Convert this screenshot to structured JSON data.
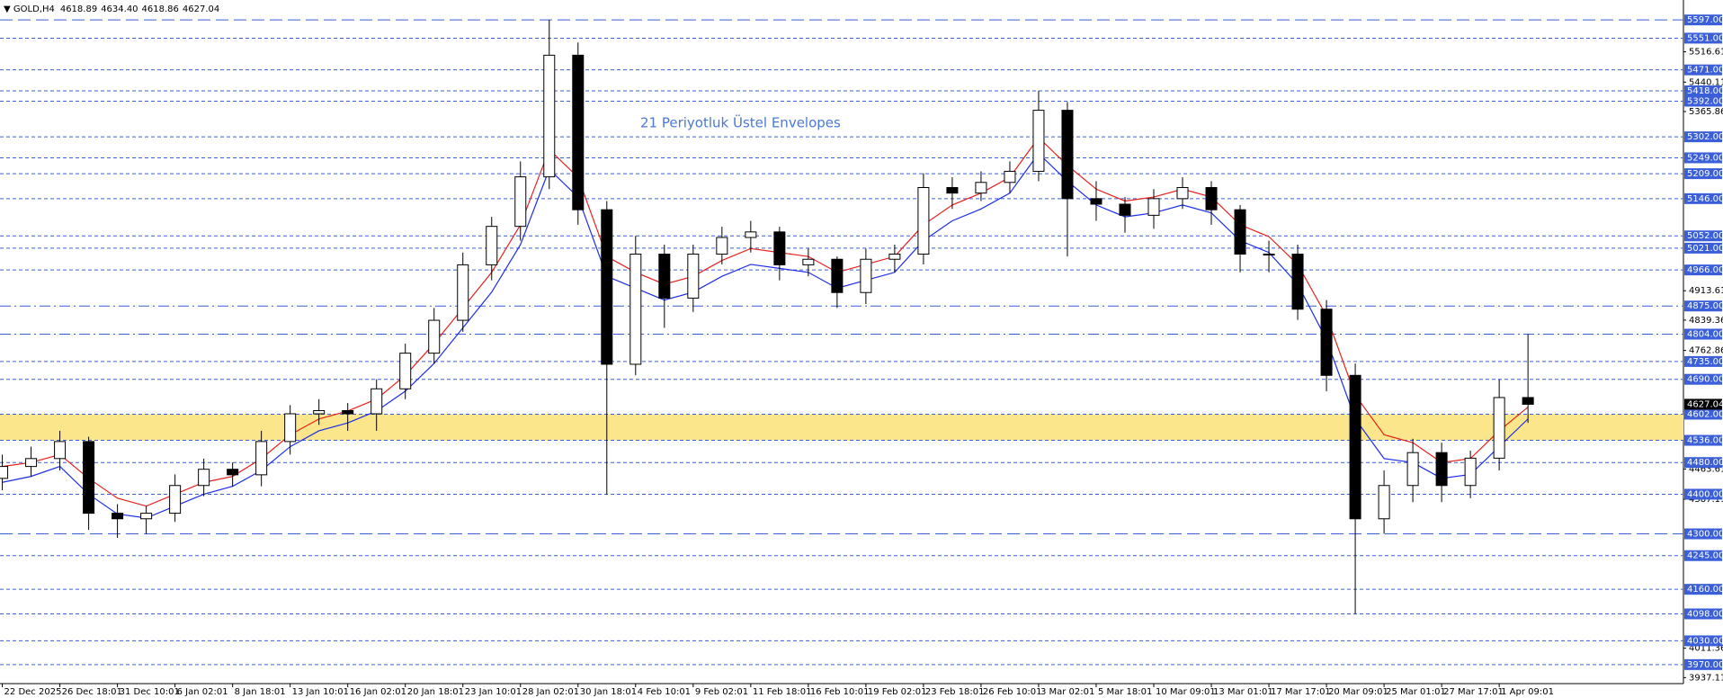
{
  "chart_data": {
    "type": "candlestick",
    "header": {
      "symbol": "GOLD,H4",
      "ohlc": [
        "4618.89",
        "4634.40",
        "4618.86",
        "4627.04"
      ]
    },
    "annotation": "21 Periyotluk Üstel Envelopes",
    "x": [
      0,
      1,
      2,
      3,
      4,
      5,
      6,
      7,
      8,
      9,
      10,
      11,
      12,
      13,
      14,
      15,
      16,
      17,
      18,
      19,
      20,
      21,
      22,
      23,
      24,
      25,
      26,
      27,
      28,
      29,
      30,
      31,
      32,
      33,
      34,
      35,
      36,
      37,
      38,
      39,
      40,
      41,
      42,
      43,
      44,
      45,
      46,
      47,
      48,
      49,
      50,
      51,
      52,
      53
    ],
    "open": [
      4440,
      4470,
      4490,
      4533,
      4352,
      4338,
      4352,
      4422,
      4463,
      4449,
      4533,
      4603,
      4611,
      4603,
      4666,
      4756,
      4839,
      4979,
      5076,
      5201,
      5508,
      5118,
      4728,
      5006,
      4895,
      5006,
      5048,
      5062,
      4979,
      4993,
      4909,
      4993,
      5006,
      5174,
      5160,
      5187,
      5215,
      5369,
      5146,
      5132,
      5104,
      5146,
      5174,
      5118,
      5006,
      5006,
      4867,
      4700,
      4338,
      4422,
      4505,
      4422,
      4491,
      4644
    ],
    "high": [
      4500,
      4520,
      4560,
      4545,
      4375,
      4370,
      4450,
      4490,
      4480,
      4560,
      4625,
      4640,
      4630,
      4690,
      4780,
      4870,
      5010,
      5100,
      5240,
      5597,
      5540,
      5140,
      5052,
      5030,
      5030,
      5075,
      5090,
      5075,
      5020,
      5000,
      5020,
      5030,
      5210,
      5200,
      5215,
      5240,
      5418,
      5390,
      5190,
      5150,
      5170,
      5200,
      5190,
      5130,
      5040,
      5030,
      4890,
      4730,
      4460,
      4540,
      4530,
      4510,
      4690,
      4804
    ],
    "low": [
      4410,
      4445,
      4460,
      4310,
      4290,
      4300,
      4330,
      4395,
      4420,
      4420,
      4500,
      4575,
      4560,
      4560,
      4640,
      4730,
      4810,
      4940,
      5040,
      5170,
      5080,
      4399,
      4700,
      4820,
      4860,
      4980,
      5010,
      4940,
      4950,
      4870,
      4880,
      4960,
      4980,
      5120,
      5140,
      5160,
      5190,
      5000,
      5090,
      5060,
      5070,
      5120,
      5080,
      4960,
      4960,
      4840,
      4660,
      4098,
      4300,
      4380,
      4380,
      4390,
      4460,
      4580
    ],
    "close": [
      4470,
      4490,
      4533,
      4352,
      4338,
      4352,
      4422,
      4463,
      4449,
      4533,
      4603,
      4611,
      4603,
      4666,
      4756,
      4839,
      4979,
      5076,
      5201,
      5508,
      5118,
      4728,
      5006,
      4895,
      5006,
      5048,
      5062,
      4979,
      4993,
      4909,
      4993,
      5006,
      5174,
      5160,
      5187,
      5215,
      5369,
      5146,
      5132,
      5104,
      5146,
      5174,
      5118,
      5006,
      5006,
      4867,
      4700,
      4338,
      4422,
      4505,
      4422,
      4491,
      4644,
      4627
    ],
    "envelopes": [
      {
        "color": "#e8201c",
        "values": [
          4470,
          4480,
          4500,
          4440,
          4390,
          4370,
          4400,
          4430,
          4445,
          4490,
          4550,
          4590,
          4610,
          4640,
          4700,
          4780,
          4870,
          4960,
          5080,
          5270,
          5200,
          5000,
          4960,
          4930,
          4950,
          4990,
          5020,
          5010,
          5000,
          4960,
          4980,
          5000,
          5080,
          5130,
          5160,
          5200,
          5300,
          5230,
          5170,
          5140,
          5150,
          5170,
          5150,
          5080,
          5050,
          4980,
          4850,
          4650,
          4550,
          4530,
          4480,
          4490,
          4560,
          4620
        ]
      },
      {
        "color": "#1c2ee8",
        "values": [
          4430,
          4445,
          4470,
          4400,
          4350,
          4340,
          4370,
          4400,
          4420,
          4460,
          4520,
          4560,
          4580,
          4610,
          4660,
          4730,
          4820,
          4910,
          5030,
          5220,
          5150,
          4950,
          4920,
          4890,
          4910,
          4950,
          4980,
          4970,
          4960,
          4920,
          4940,
          4960,
          5040,
          5090,
          5120,
          5160,
          5260,
          5190,
          5130,
          5100,
          5110,
          5130,
          5110,
          5040,
          5010,
          4930,
          4790,
          4590,
          4490,
          4480,
          4440,
          4450,
          4520,
          4590
        ]
      }
    ],
    "zone": {
      "from": 4536,
      "to": 4602,
      "color": "#fbe68c"
    },
    "levels": [
      {
        "value": 5597,
        "label": "5597.00",
        "style": "long"
      },
      {
        "value": 5551,
        "label": "5551.00",
        "style": "dash"
      },
      {
        "value": 5471,
        "label": "5471.00",
        "style": "dash"
      },
      {
        "value": 5418,
        "label": "5418.00",
        "style": "dash"
      },
      {
        "value": 5392,
        "label": "5392.00",
        "style": "dash"
      },
      {
        "value": 5302,
        "label": "5302.00",
        "style": "dash"
      },
      {
        "value": 5249,
        "label": "5249.00",
        "style": "dash"
      },
      {
        "value": 5209,
        "label": "5209.00",
        "style": "dash"
      },
      {
        "value": 5146,
        "label": "5146.00",
        "style": "dash"
      },
      {
        "value": 5052,
        "label": "5052.00",
        "style": "dash"
      },
      {
        "value": 5021,
        "label": "5021.00",
        "style": "dash"
      },
      {
        "value": 4966,
        "label": "4966.00",
        "style": "dash"
      },
      {
        "value": 4875,
        "label": "4875.00",
        "style": "dashdot"
      },
      {
        "value": 4804,
        "label": "4804.00",
        "style": "dashdot"
      },
      {
        "value": 4735,
        "label": "4735.00",
        "style": "dash"
      },
      {
        "value": 4690,
        "label": "4690.00",
        "style": "dash"
      },
      {
        "value": 4602,
        "label": "4602.00",
        "style": "dash"
      },
      {
        "value": 4536,
        "label": "4536.00",
        "style": "dash"
      },
      {
        "value": 4480,
        "label": "4480.00",
        "style": "dash"
      },
      {
        "value": 4400,
        "label": "4400.00",
        "style": "dash"
      },
      {
        "value": 4300,
        "label": "4300.00",
        "style": "long"
      },
      {
        "value": 4245,
        "label": "4245.00",
        "style": "dash"
      },
      {
        "value": 4160,
        "label": "4160.00",
        "style": "dash"
      },
      {
        "value": 4098,
        "label": "4098.00",
        "style": "dash"
      },
      {
        "value": 4030,
        "label": "4030.00",
        "style": "dash"
      },
      {
        "value": 3970,
        "label": "3970.00",
        "style": "dash"
      }
    ],
    "level_color": "#3a5fd9",
    "current_price": 4627.04,
    "ylim": [
      3922,
      5636
    ],
    "yticks": [
      5516.61,
      5440.11,
      5365.86,
      4913.61,
      4839.36,
      4762.86,
      4463.61,
      4387.11,
      4011.36,
      3937.11
    ],
    "xlim": [
      -0.08,
      58.4
    ],
    "xticks": [
      {
        "value": 0,
        "label": "22 Dec 2025"
      },
      {
        "value": 2,
        "label": "26 Dec 18:01"
      },
      {
        "value": 4,
        "label": "31 Dec 10:01"
      },
      {
        "value": 6,
        "label": "6 Jan 02:01"
      },
      {
        "value": 8,
        "label": "8 Jan 18:01"
      },
      {
        "value": 10,
        "label": "13 Jan 10:01"
      },
      {
        "value": 12,
        "label": "16 Jan 02:01"
      },
      {
        "value": 14,
        "label": "20 Jan 18:01"
      },
      {
        "value": 16,
        "label": "23 Jan 10:01"
      },
      {
        "value": 18,
        "label": "28 Jan 02:01"
      },
      {
        "value": 20,
        "label": "30 Jan 18:01"
      },
      {
        "value": 22,
        "label": "4 Feb 10:01"
      },
      {
        "value": 24,
        "label": "9 Feb 02:01"
      },
      {
        "value": 26,
        "label": "11 Feb 18:01"
      },
      {
        "value": 28,
        "label": "16 Feb 10:01"
      },
      {
        "value": 30,
        "label": "19 Feb 02:01"
      },
      {
        "value": 32,
        "label": "23 Feb 18:01"
      },
      {
        "value": 34,
        "label": "26 Feb 10:01"
      },
      {
        "value": 36,
        "label": "3 Mar 02:01"
      },
      {
        "value": 38,
        "label": "5 Mar 18:01"
      },
      {
        "value": 40,
        "label": "10 Mar 09:01"
      },
      {
        "value": 42,
        "label": "13 Mar 01:01"
      },
      {
        "value": 44,
        "label": "17 Mar 17:01"
      },
      {
        "value": 46,
        "label": "20 Mar 09:01"
      },
      {
        "value": 48,
        "label": "25 Mar 01:01"
      },
      {
        "value": 50,
        "label": "27 Mar 17:01"
      },
      {
        "value": 52,
        "label": "1 Apr 09:01"
      }
    ]
  }
}
